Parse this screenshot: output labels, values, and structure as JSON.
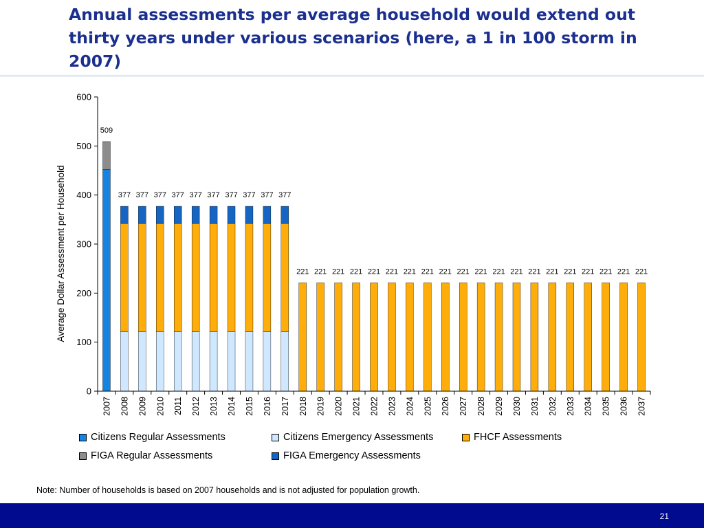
{
  "slide": {
    "title": "Annual assessments per average household would extend out thirty years under various scenarios (here, a 1 in 100 storm in 2007)",
    "note": "Note: Number of households is based on 2007 households and is not adjusted for population growth.",
    "page_number": "21",
    "colors": {
      "title": "#1b2f8f",
      "footer": "#000b8f",
      "rule": "#8fb6dd"
    }
  },
  "chart_data": {
    "type": "bar",
    "stacked": true,
    "title": "",
    "xlabel": "",
    "ylabel": "Average Dollar Assessment per Household",
    "ylim": [
      0,
      600
    ],
    "yticks": [
      0,
      100,
      200,
      300,
      400,
      500,
      600
    ],
    "grid": false,
    "legend_position": "bottom",
    "categories": [
      "2007",
      "2008",
      "2009",
      "2010",
      "2011",
      "2012",
      "2013",
      "2014",
      "2015",
      "2016",
      "2017",
      "2018",
      "2019",
      "2020",
      "2021",
      "2022",
      "2023",
      "2024",
      "2025",
      "2026",
      "2027",
      "2028",
      "2029",
      "2030",
      "2031",
      "2032",
      "2033",
      "2034",
      "2035",
      "2036",
      "2037"
    ],
    "series": [
      {
        "name": "Citizens Regular Assessments",
        "color": "#1683e0",
        "values": [
          452,
          0,
          0,
          0,
          0,
          0,
          0,
          0,
          0,
          0,
          0,
          0,
          0,
          0,
          0,
          0,
          0,
          0,
          0,
          0,
          0,
          0,
          0,
          0,
          0,
          0,
          0,
          0,
          0,
          0,
          0
        ]
      },
      {
        "name": "Citizens Emergency Assessments",
        "color": "#cfe8ff",
        "values": [
          0,
          121,
          121,
          121,
          121,
          121,
          121,
          121,
          121,
          121,
          121,
          0,
          0,
          0,
          0,
          0,
          0,
          0,
          0,
          0,
          0,
          0,
          0,
          0,
          0,
          0,
          0,
          0,
          0,
          0,
          0
        ]
      },
      {
        "name": "FHCF Assessments",
        "color": "#ffad0a",
        "values": [
          0,
          221,
          221,
          221,
          221,
          221,
          221,
          221,
          221,
          221,
          221,
          221,
          221,
          221,
          221,
          221,
          221,
          221,
          221,
          221,
          221,
          221,
          221,
          221,
          221,
          221,
          221,
          221,
          221,
          221,
          221
        ]
      },
      {
        "name": "FIGA Regular Assessments",
        "color": "#8c8c8c",
        "values": [
          57,
          0,
          0,
          0,
          0,
          0,
          0,
          0,
          0,
          0,
          0,
          0,
          0,
          0,
          0,
          0,
          0,
          0,
          0,
          0,
          0,
          0,
          0,
          0,
          0,
          0,
          0,
          0,
          0,
          0,
          0
        ]
      },
      {
        "name": "FIGA Emergency Assessments",
        "color": "#1566c4",
        "values": [
          0,
          35,
          35,
          35,
          35,
          35,
          35,
          35,
          35,
          35,
          35,
          0,
          0,
          0,
          0,
          0,
          0,
          0,
          0,
          0,
          0,
          0,
          0,
          0,
          0,
          0,
          0,
          0,
          0,
          0,
          0
        ]
      }
    ],
    "totals": [
      509,
      377,
      377,
      377,
      377,
      377,
      377,
      377,
      377,
      377,
      377,
      221,
      221,
      221,
      221,
      221,
      221,
      221,
      221,
      221,
      221,
      221,
      221,
      221,
      221,
      221,
      221,
      221,
      221,
      221,
      221
    ]
  }
}
